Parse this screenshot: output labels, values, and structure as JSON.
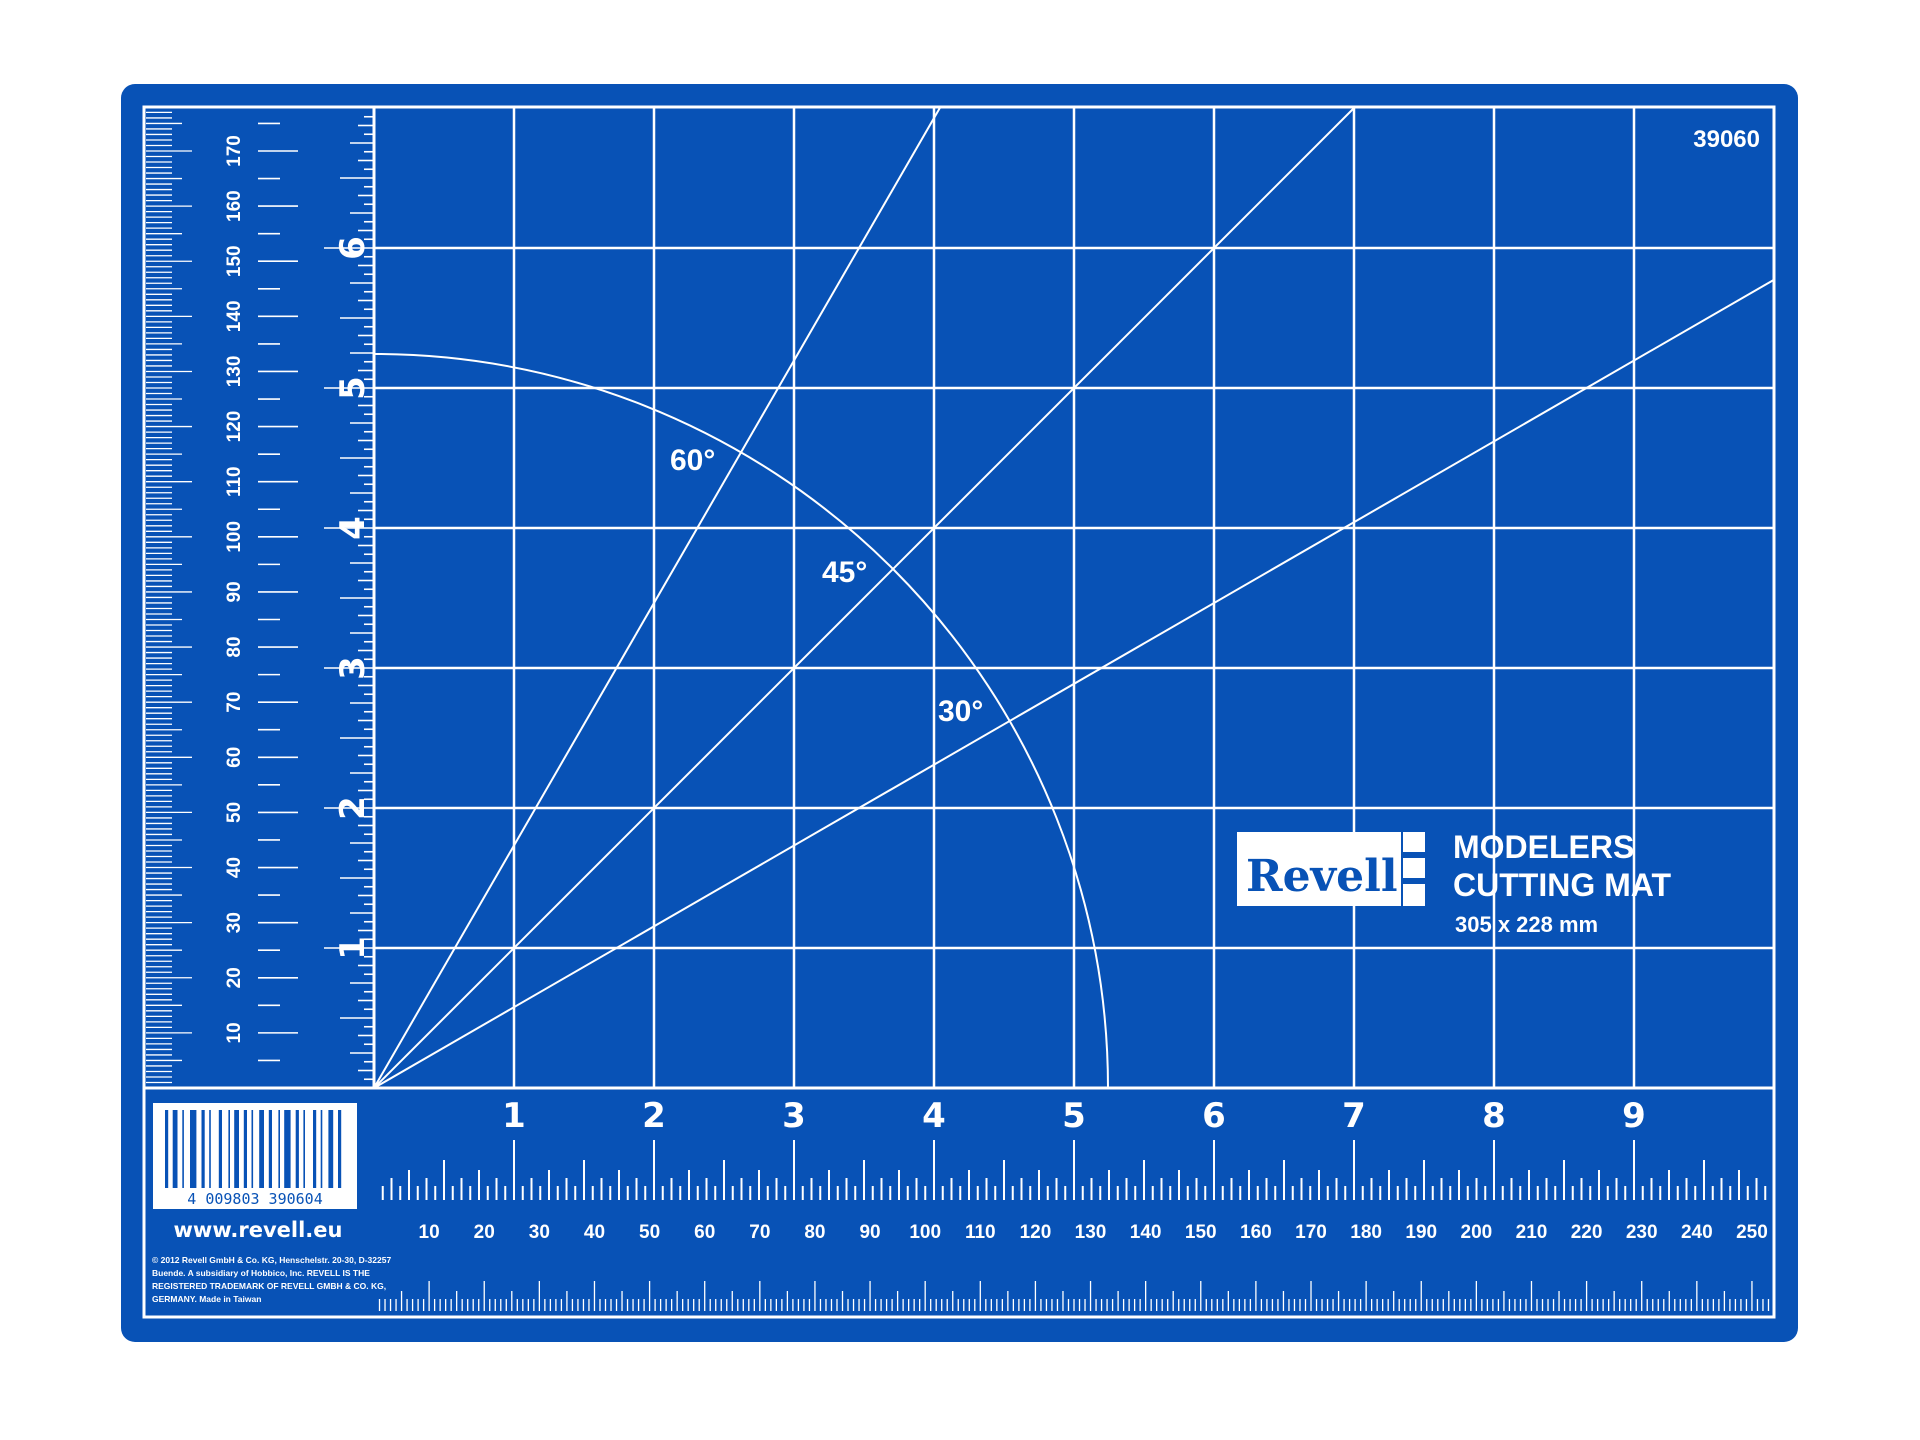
{
  "mat": {
    "product_number": "39060",
    "colors": {
      "mat": "#0852b6",
      "lines": "#ffffff",
      "background": "#ffffff"
    },
    "grid_units": "inch",
    "angle_labels": [
      "60°",
      "45°",
      "30°"
    ],
    "angles": [
      60,
      45,
      30
    ],
    "inch_labels_bottom": [
      "1",
      "2",
      "3",
      "4",
      "5",
      "6",
      "7",
      "8",
      "9"
    ],
    "inch_labels_left": [
      "1",
      "2",
      "3",
      "4",
      "5",
      "6"
    ],
    "mm_labels_bottom": [
      "10",
      "20",
      "30",
      "40",
      "50",
      "60",
      "70",
      "80",
      "90",
      "100",
      "110",
      "120",
      "130",
      "140",
      "150",
      "160",
      "170",
      "180",
      "190",
      "200",
      "210",
      "220",
      "230",
      "240",
      "250"
    ],
    "mm_labels_left": [
      "10",
      "20",
      "30",
      "40",
      "50",
      "60",
      "70",
      "80",
      "90",
      "100",
      "110",
      "120",
      "130",
      "140",
      "150",
      "160",
      "170"
    ]
  },
  "branding": {
    "logo_text": "Revell",
    "title_line1": "MODELERS",
    "title_line2": "CUTTING MAT",
    "size": "305 x 228 mm",
    "website": "www.revell.eu",
    "barcode_number": "4 009803 390604",
    "copyright_lines": [
      "© 2012 Revell GmbH & Co. KG, Henschelstr. 20-30, D-32257",
      "Buende. A subsidiary of Hobbico, Inc. REVELL IS THE",
      "REGISTERED TRADEMARK OF REVELL GMBH & CO. KG,",
      "GERMANY. Made in Taiwan"
    ]
  }
}
